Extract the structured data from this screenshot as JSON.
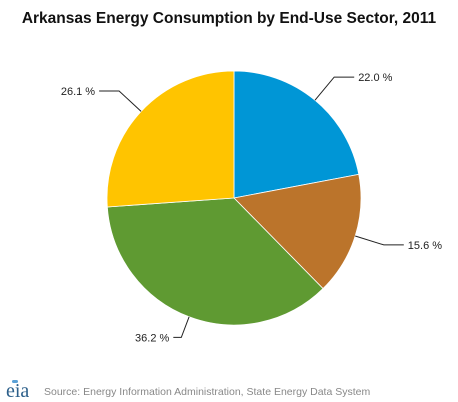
{
  "chart_data": {
    "type": "pie",
    "title": "Arkansas Energy Consumption by End-Use Sector, 2011",
    "slices": [
      {
        "value": 22.0,
        "label": "22.0 %",
        "color": "#0096d6"
      },
      {
        "value": 15.6,
        "label": "15.6 %",
        "color": "#bb742b"
      },
      {
        "value": 36.2,
        "label": "36.2 %",
        "color": "#5f9a32"
      },
      {
        "value": 26.1,
        "label": "26.1 %",
        "color": "#ffc400"
      }
    ]
  },
  "footer": {
    "logo_text": "eia",
    "source": "Source: Energy Information Administration, State Energy Data System"
  }
}
